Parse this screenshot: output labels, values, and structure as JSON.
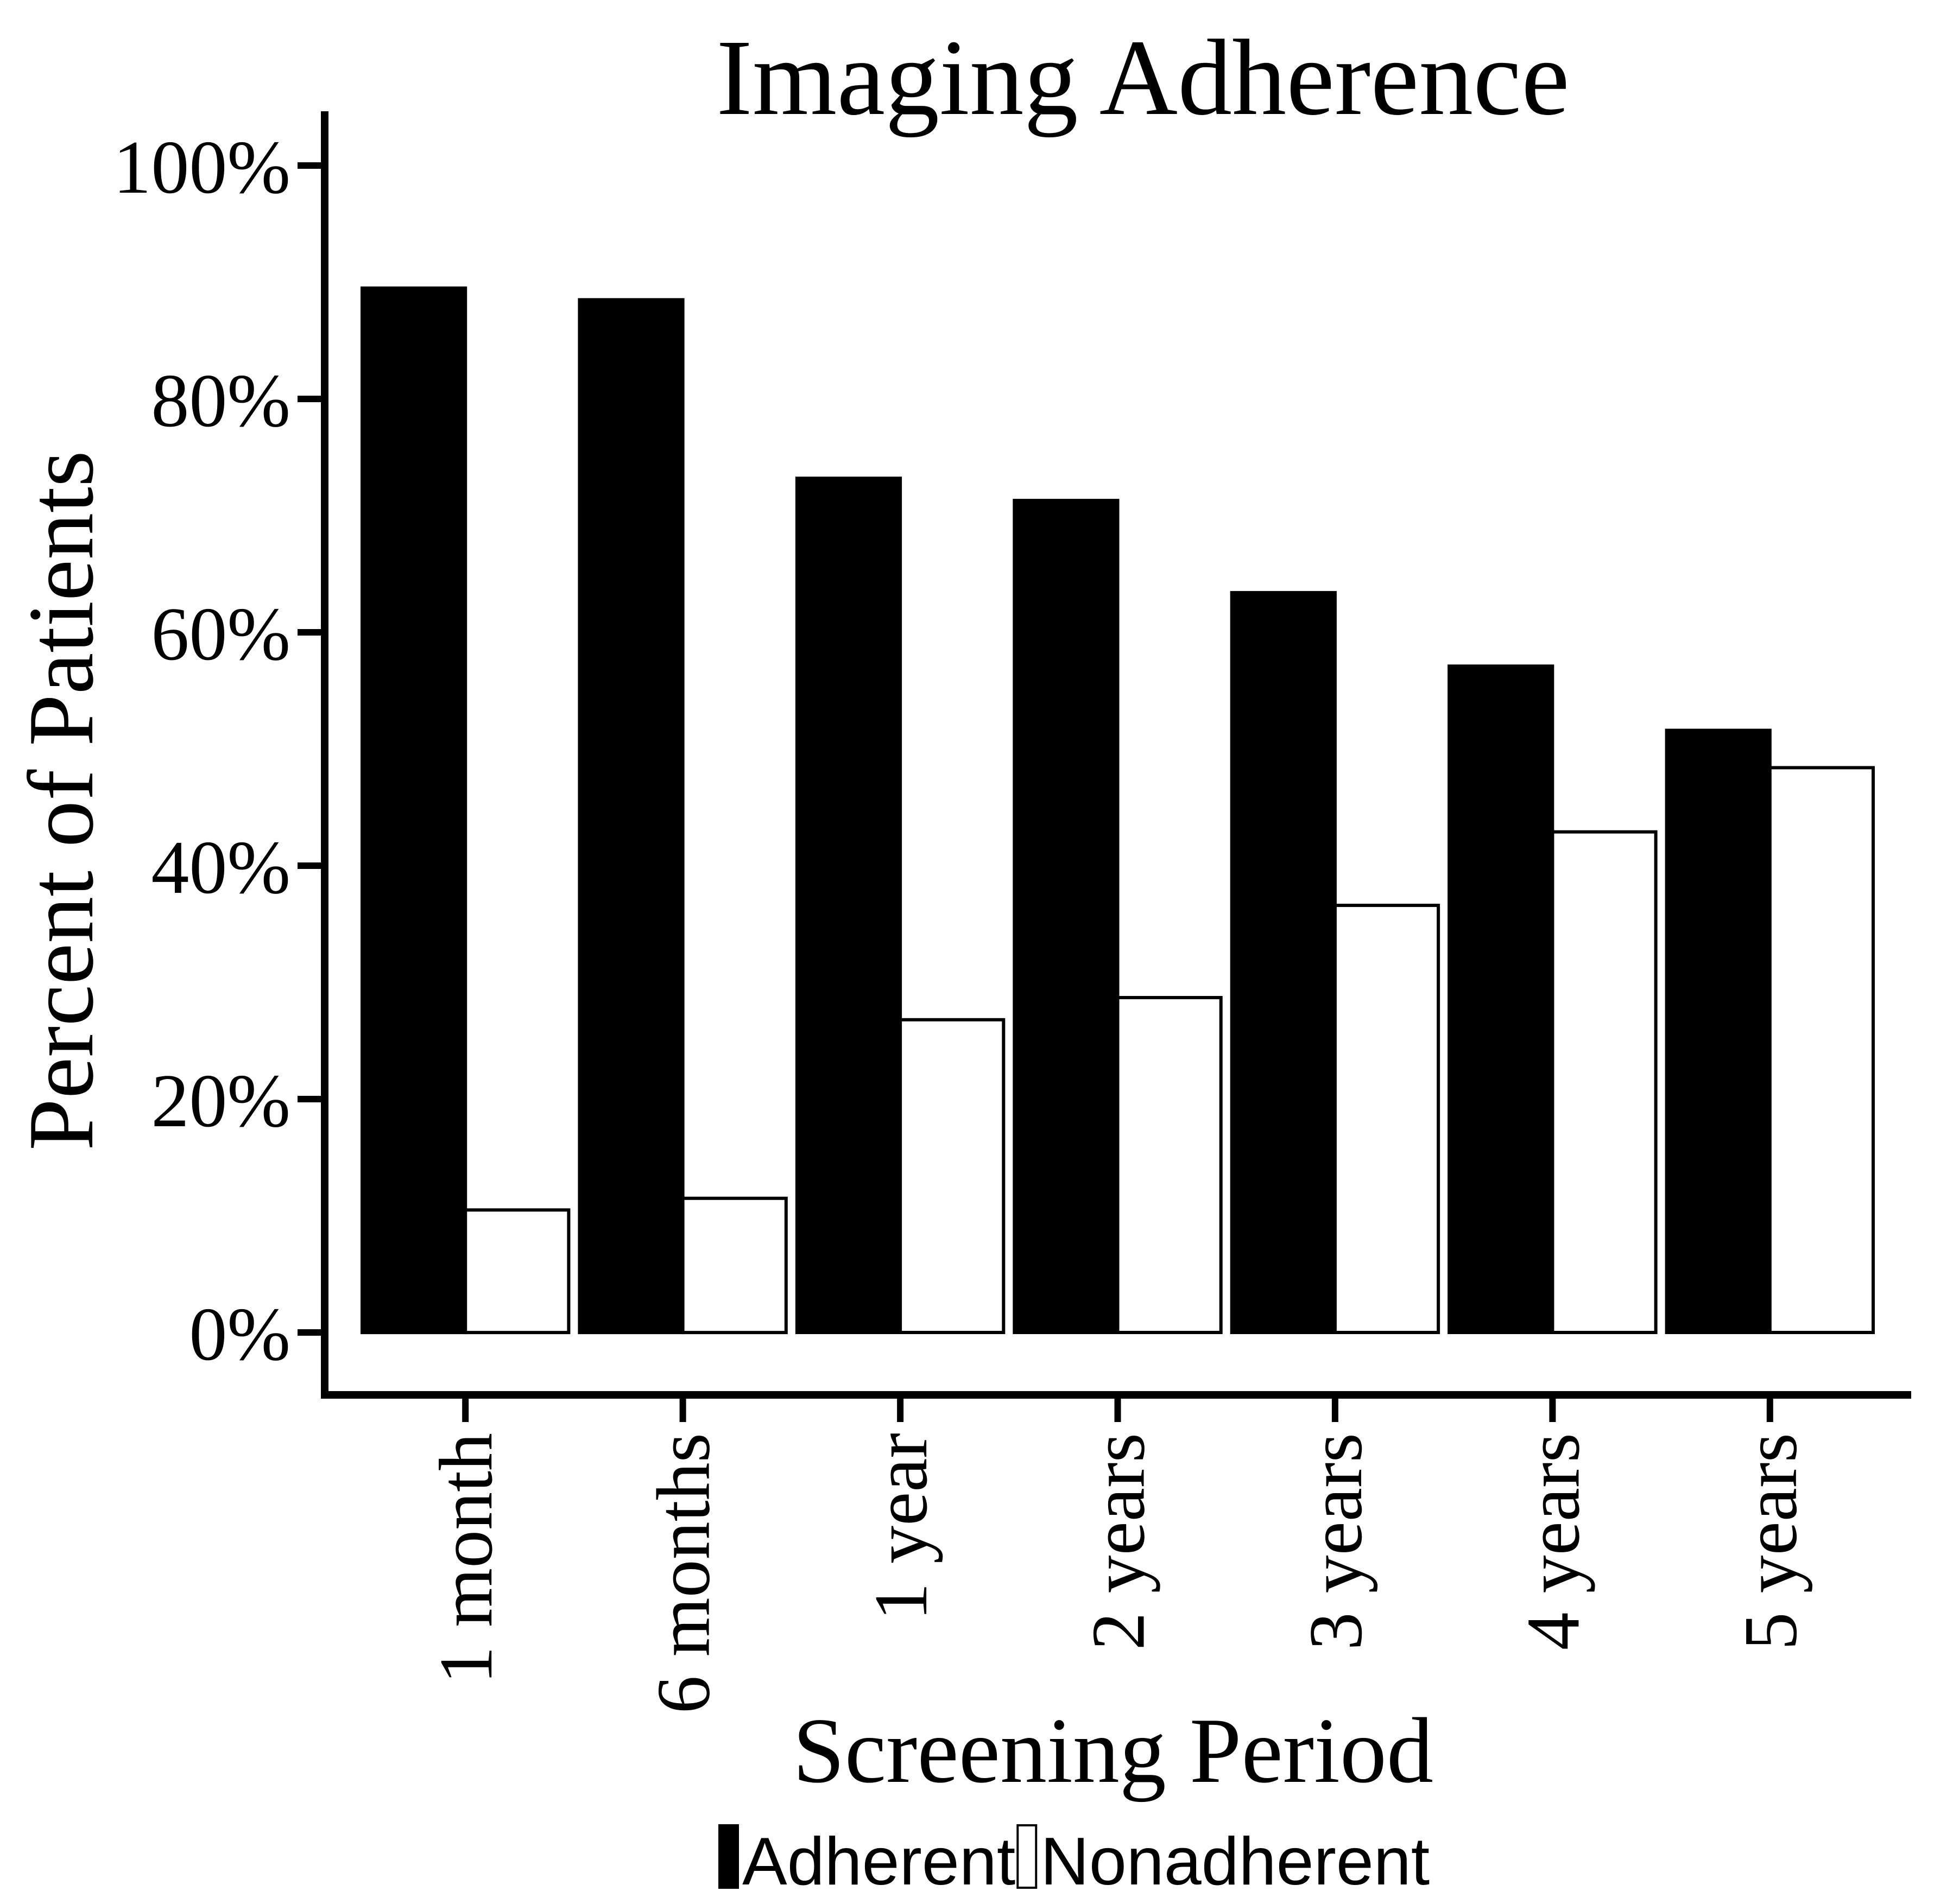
{
  "chart_data": {
    "type": "bar",
    "title": "Imaging Adherence",
    "xlabel": "Screening Period",
    "ylabel": "Percent of Patients",
    "categories": [
      "1 month",
      "6 months",
      "1 year",
      "2 years",
      "3 years",
      "4 years",
      "5 years"
    ],
    "series": [
      {
        "name": "Adherent",
        "values": [
          89.5,
          88.5,
          73.2,
          71.3,
          63.4,
          57.1,
          51.6
        ],
        "fill": "#000000"
      },
      {
        "name": "Nonadherent",
        "values": [
          10.5,
          11.5,
          26.8,
          28.7,
          36.6,
          42.9,
          48.4
        ],
        "fill": "#ffffff"
      }
    ],
    "ylim": [
      0,
      100
    ],
    "yticks": [
      0,
      20,
      40,
      60,
      80,
      100
    ],
    "ytick_labels": [
      "0%",
      "20%",
      "40%",
      "60%",
      "80%",
      "100%"
    ],
    "grid": false,
    "legend_position": "bottom-center",
    "bar_outline": "#000000"
  }
}
